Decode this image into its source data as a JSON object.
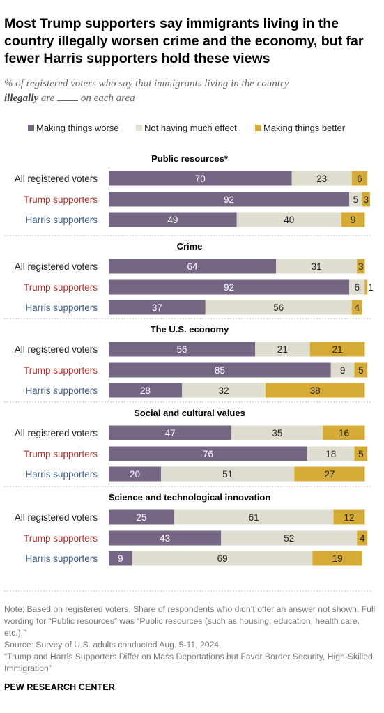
{
  "title": "Most Trump supporters say immigrants living in the country illegally worsen crime and the economy, but far fewer Harris supporters hold these views",
  "subtitle": {
    "part1": "% of registered voters who say that immigrants living in the country",
    "bold": "illegally",
    "part2": "are",
    "part3": "on each area"
  },
  "legend": {
    "worse": "Making things worse",
    "no_effect": "Not having much effect",
    "better": "Making things better"
  },
  "colors": {
    "worse": "#756784",
    "no_effect": "#dfdcd0",
    "better": "#d5ab35",
    "trump_label": "#b7312c",
    "harris_label": "#3b5c84",
    "divider": "#bdbdbd"
  },
  "chart_data": {
    "type": "bar",
    "orientation": "horizontal",
    "stacked": true,
    "series_names": [
      "Making things worse",
      "Not having much effect",
      "Making things better"
    ],
    "row_labels": [
      "All registered voters",
      "Trump supporters",
      "Harris supporters"
    ],
    "xlim": [
      0,
      100
    ],
    "groups": [
      {
        "title": "Public resources*",
        "rows": [
          [
            70,
            23,
            6
          ],
          [
            92,
            5,
            3
          ],
          [
            49,
            40,
            9
          ]
        ]
      },
      {
        "title": "Crime",
        "rows": [
          [
            64,
            31,
            3
          ],
          [
            92,
            6,
            1
          ],
          [
            37,
            56,
            4
          ]
        ]
      },
      {
        "title": "The U.S. economy",
        "rows": [
          [
            56,
            21,
            21
          ],
          [
            85,
            9,
            5
          ],
          [
            28,
            32,
            38
          ]
        ]
      },
      {
        "title": "Social and cultural values",
        "rows": [
          [
            47,
            35,
            16
          ],
          [
            76,
            18,
            5
          ],
          [
            20,
            51,
            27
          ]
        ]
      },
      {
        "title": "Science and technological innovation",
        "rows": [
          [
            25,
            61,
            12
          ],
          [
            43,
            52,
            4
          ],
          [
            9,
            69,
            19
          ]
        ]
      }
    ]
  },
  "footer": {
    "note": "Note: Based on registered voters. Share of respondents who didn’t offer an answer not shown. Full wording for “Public resources” was “Public resources (such as housing, education, health care, etc.).”",
    "source": "Source: Survey of U.S. adults conducted Aug. 5-11, 2024.",
    "report": "“Trump and Harris Supporters Differ on Mass Deportations but Favor Border Security, High-Skilled Immigration”",
    "brand": "PEW RESEARCH CENTER"
  }
}
